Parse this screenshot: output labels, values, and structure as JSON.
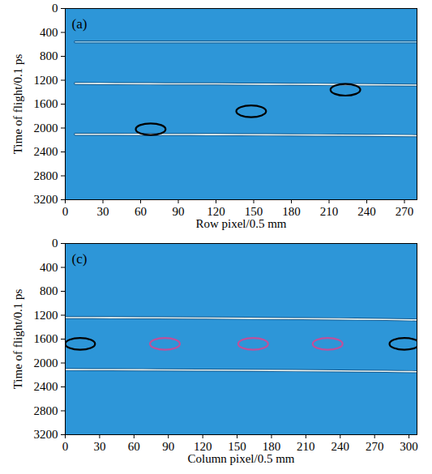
{
  "chart_data": [
    {
      "type": "line",
      "title": "(a)",
      "x_label": "Row pixel/0.5 mm",
      "y_label": "Time of flight/0.1 ps",
      "xlim": [
        0,
        280
      ],
      "ylim": [
        3200,
        0
      ],
      "xticks": [
        0,
        30,
        60,
        90,
        120,
        150,
        180,
        210,
        240,
        270
      ],
      "yticks": [
        0,
        400,
        800,
        1200,
        1600,
        2000,
        2400,
        2800,
        3200
      ],
      "series": [
        {
          "color": "#8fcdee",
          "x": [
            8,
            280
          ],
          "values": [
            560,
            560
          ]
        },
        {
          "color": "#eef6f2",
          "x": [
            8,
            40,
            80,
            120,
            160,
            200,
            240,
            280
          ],
          "values": [
            1255,
            1257,
            1260,
            1262,
            1266,
            1270,
            1276,
            1282
          ]
        },
        {
          "color": "#eef6f2",
          "x": [
            8,
            40,
            80,
            120,
            160,
            200,
            240,
            280
          ],
          "values": [
            2105,
            2106,
            2108,
            2110,
            2113,
            2117,
            2122,
            2128
          ]
        },
        {
          "type": "scatter",
          "marker": "ellipse",
          "color": "#000000",
          "x": [
            68,
            148,
            223
          ],
          "values": [
            2020,
            1720,
            1360
          ]
        }
      ]
    },
    {
      "type": "line",
      "title": "(c)",
      "x_label": "Column pixel/0.5 mm",
      "y_label": "Time of flight/0.1 ps",
      "xlim": [
        0,
        307
      ],
      "ylim": [
        3200,
        0
      ],
      "xticks": [
        0,
        30,
        60,
        90,
        120,
        150,
        180,
        210,
        240,
        270,
        300
      ],
      "yticks": [
        0,
        400,
        800,
        1200,
        1600,
        2000,
        2400,
        2800,
        3200
      ],
      "series": [
        {
          "color": "#eef6f2",
          "x": [
            0,
            40,
            80,
            120,
            160,
            200,
            240,
            280,
            307
          ],
          "values": [
            1240,
            1242,
            1245,
            1248,
            1252,
            1257,
            1263,
            1272,
            1280
          ]
        },
        {
          "color": "#eef6f2",
          "x": [
            0,
            40,
            80,
            120,
            160,
            200,
            240,
            280,
            307
          ],
          "values": [
            2110,
            2112,
            2115,
            2118,
            2122,
            2127,
            2133,
            2140,
            2145
          ]
        },
        {
          "type": "scatter",
          "marker": "ellipse",
          "color": "#000000",
          "x": [
            13,
            296
          ],
          "values": [
            1680,
            1680
          ]
        },
        {
          "type": "scatter",
          "marker": "ellipse",
          "color": "#c0509a",
          "x": [
            87,
            164,
            229
          ],
          "values": [
            1680,
            1680,
            1680
          ]
        }
      ]
    }
  ]
}
